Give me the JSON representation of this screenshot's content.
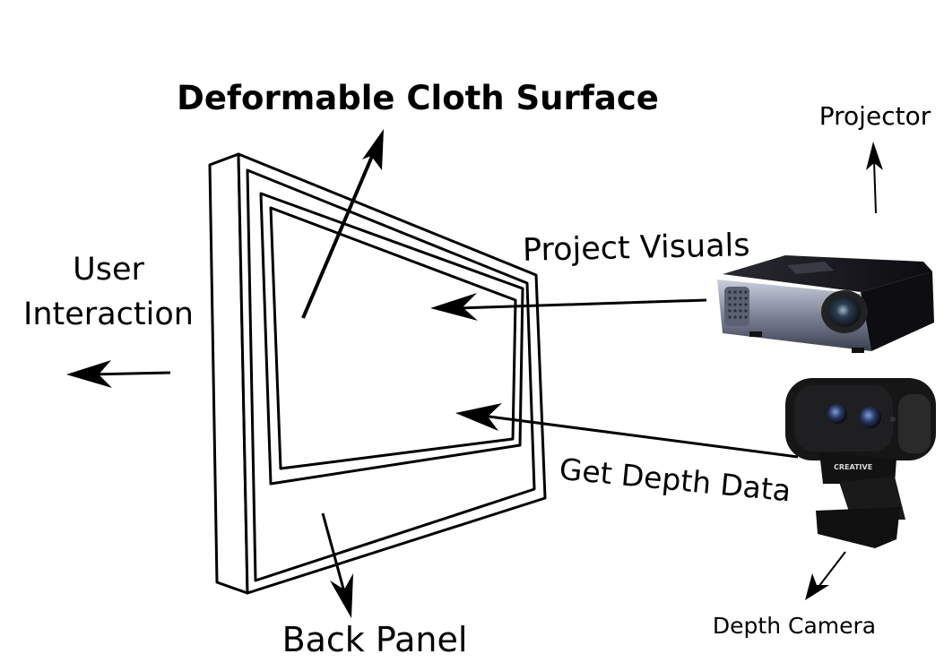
{
  "labels": {
    "cloth_surface": "Deformable Cloth Surface",
    "projector": "Projector",
    "project_visuals": "Project Visuals",
    "user_interaction_line1": "User",
    "user_interaction_line2": "Interaction",
    "get_depth_data": "Get Depth Data",
    "back_panel": "Back Panel",
    "depth_camera": "Depth Camera",
    "camera_brand": "CREATIVE"
  },
  "colors": {
    "ink": "#000000",
    "background": "#ffffff",
    "projector_body": "#1a1a22",
    "projector_metal": "#8c93a8",
    "camera_body": "#161616"
  }
}
